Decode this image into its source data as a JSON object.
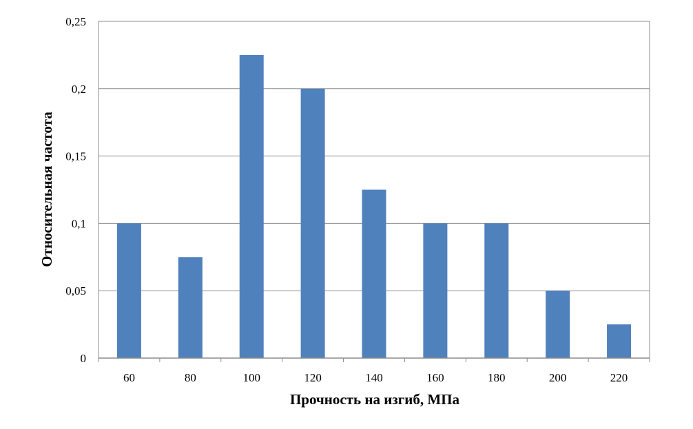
{
  "chart_data": {
    "type": "bar",
    "title": "",
    "xlabel": "Прочность на изгиб, МПа",
    "ylabel": "Относительная частота",
    "categories": [
      "60",
      "80",
      "100",
      "120",
      "140",
      "160",
      "180",
      "200",
      "220"
    ],
    "values": [
      0.1,
      0.075,
      0.225,
      0.2,
      0.125,
      0.1,
      0.1,
      0.05,
      0.025
    ],
    "ylim": [
      0,
      0.25
    ],
    "yticks": [
      0,
      0.05,
      0.1,
      0.15,
      0.2,
      0.25
    ],
    "ytick_labels": [
      "0",
      "0,05",
      "0,1",
      "0,15",
      "0,2",
      "0,25"
    ],
    "grid": "horizontal",
    "legend": "none",
    "colors": {
      "bar": "#4f81bd",
      "grid": "#8c8c8c",
      "axis": "#8c8c8c"
    }
  }
}
